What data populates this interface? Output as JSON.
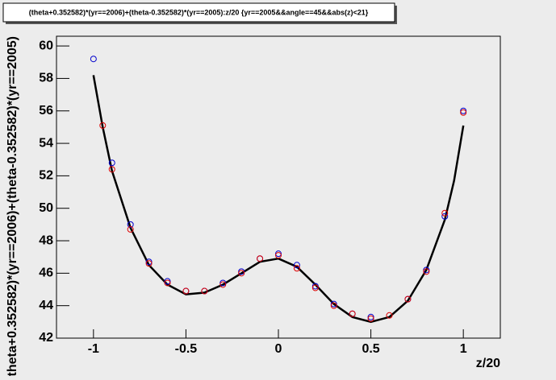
{
  "chart_data": {
    "type": "scatter",
    "title": "(theta+0.352582)*(yr==2006)+(theta-0.352582)*(yr==2005):z/20 {yr==2005&&angle==45&&abs(z)<21}",
    "x_label": "z/20",
    "y_label": "(theta+0.352582)*(yr==2006)+(theta-0.352582)*(yr==2005)",
    "xlim": [
      -1.2,
      1.2
    ],
    "ylim": [
      42,
      60.6
    ],
    "xticks": [
      -1,
      -0.5,
      0,
      0.5,
      1
    ],
    "yticks": [
      42,
      44,
      46,
      48,
      50,
      52,
      54,
      56,
      58,
      60
    ],
    "series": [
      {
        "color": "#0000cc",
        "x": [
          -1,
          -0.9,
          -0.8,
          -0.7,
          -0.6,
          -0.5,
          -0.4,
          -0.3,
          -0.2,
          -0.1,
          0,
          0.1,
          0.2,
          0.3,
          0.4,
          0.5,
          0.7,
          0.8,
          0.9,
          1
        ],
        "values": [
          59.2,
          52.8,
          49.0,
          46.7,
          45.5,
          44.9,
          44.9,
          45.4,
          46.1,
          46.9,
          47.2,
          46.5,
          45.2,
          44.1,
          43.5,
          43.3,
          44.4,
          46.2,
          49.5,
          56.0
        ]
      },
      {
        "color": "#dd0000",
        "x": [
          -0.95,
          -0.9,
          -0.8,
          -0.7,
          -0.6,
          -0.5,
          -0.4,
          -0.3,
          -0.2,
          -0.1,
          0,
          0.1,
          0.2,
          0.3,
          0.4,
          0.5,
          0.6,
          0.7,
          0.8,
          0.9,
          1
        ],
        "values": [
          55.1,
          52.4,
          48.7,
          46.6,
          45.4,
          44.9,
          44.9,
          45.3,
          46.0,
          46.9,
          47.1,
          46.3,
          45.1,
          44.0,
          43.5,
          43.2,
          43.4,
          44.4,
          46.1,
          49.7,
          55.9
        ]
      }
    ],
    "fit": {
      "color": "#000000",
      "x": [
        -1,
        -0.95,
        -0.9,
        -0.8,
        -0.7,
        -0.6,
        -0.5,
        -0.4,
        -0.3,
        -0.2,
        -0.1,
        0,
        0.1,
        0.2,
        0.3,
        0.4,
        0.5,
        0.6,
        0.7,
        0.8,
        0.9,
        0.95,
        1
      ],
      "values": [
        58.2,
        55.0,
        52.3,
        48.8,
        46.5,
        45.3,
        44.7,
        44.8,
        45.3,
        46.0,
        46.7,
        46.9,
        46.4,
        45.3,
        44.1,
        43.3,
        43.0,
        43.3,
        44.3,
        46.2,
        49.3,
        51.7,
        55.1
      ]
    }
  }
}
